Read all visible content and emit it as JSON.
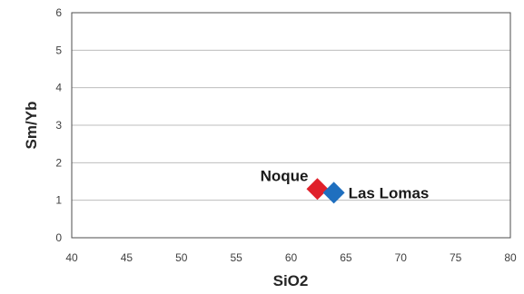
{
  "chart_data": {
    "type": "scatter",
    "title": "",
    "xlabel": "SiO2",
    "ylabel": "Sm/Yb",
    "xlim": [
      40,
      80
    ],
    "ylim": [
      0,
      6
    ],
    "xticks": [
      "40",
      "45",
      "50",
      "55",
      "60",
      "65",
      "70",
      "75",
      "80"
    ],
    "yticks": [
      "0",
      "1",
      "2",
      "3",
      "4",
      "5",
      "6"
    ],
    "grid": "horizontal",
    "legend": "none",
    "series": [
      {
        "name": "Noque",
        "marker": "diamond",
        "color": "#e0202a",
        "points": [
          {
            "x": 62.4,
            "y": 1.3
          }
        ]
      },
      {
        "name": "Las Lomas",
        "marker": "diamond",
        "color": "#1f6fbf",
        "points": [
          {
            "x": 63.9,
            "y": 1.2
          }
        ]
      }
    ]
  }
}
